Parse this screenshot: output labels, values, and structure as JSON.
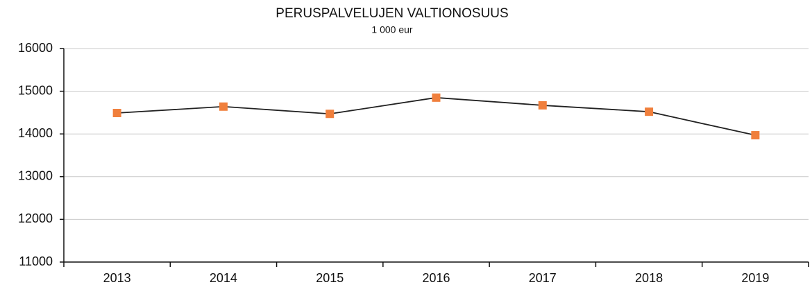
{
  "chart_data": {
    "type": "line",
    "title": "PERUSPALVELUJEN  VALTIONOSUUS",
    "subtitle": "1 000 eur",
    "categories": [
      "2013",
      "2014",
      "2015",
      "2016",
      "2017",
      "2018",
      "2019"
    ],
    "values": [
      14490,
      14640,
      14470,
      14850,
      14670,
      14520,
      13970
    ],
    "color": "#222222",
    "marker_color": "#f07f3c",
    "ylim": [
      11000,
      16000
    ],
    "yticks": [
      11000,
      12000,
      13000,
      14000,
      15000,
      16000
    ],
    "grid": true
  }
}
